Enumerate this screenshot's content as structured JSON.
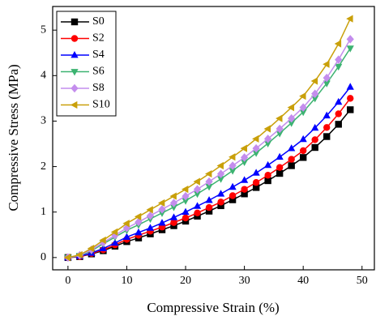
{
  "chart_data": {
    "type": "line",
    "x_label": "Compressive Strain (%)",
    "y_label": "Compressive Stress (MPa)",
    "x": [
      0,
      2,
      4,
      6,
      8,
      10,
      12,
      14,
      16,
      18,
      20,
      22,
      24,
      26,
      28,
      30,
      32,
      34,
      36,
      38,
      40,
      42,
      44,
      46,
      48
    ],
    "series": [
      {
        "name": "S0",
        "color": "#000000",
        "marker": "square",
        "values": [
          0,
          0.02,
          0.08,
          0.15,
          0.25,
          0.35,
          0.43,
          0.52,
          0.61,
          0.7,
          0.8,
          0.91,
          1.02,
          1.14,
          1.27,
          1.4,
          1.54,
          1.69,
          1.85,
          2.02,
          2.2,
          2.42,
          2.66,
          2.93,
          3.25
        ]
      },
      {
        "name": "S2",
        "color": "#ff0000",
        "marker": "circle",
        "values": [
          0,
          0.02,
          0.09,
          0.17,
          0.28,
          0.4,
          0.49,
          0.58,
          0.67,
          0.77,
          0.87,
          0.98,
          1.1,
          1.22,
          1.36,
          1.5,
          1.65,
          1.81,
          1.98,
          2.16,
          2.35,
          2.59,
          2.86,
          3.16,
          3.5
        ]
      },
      {
        "name": "S4",
        "color": "#0000ff",
        "marker": "triangle-up",
        "values": [
          0,
          0.03,
          0.1,
          0.2,
          0.32,
          0.45,
          0.55,
          0.65,
          0.76,
          0.88,
          1.0,
          1.13,
          1.26,
          1.4,
          1.55,
          1.7,
          1.86,
          2.03,
          2.21,
          2.4,
          2.6,
          2.85,
          3.12,
          3.42,
          3.75
        ]
      },
      {
        "name": "S6",
        "color": "#3cb371",
        "marker": "triangle-down",
        "values": [
          0,
          0.04,
          0.15,
          0.3,
          0.45,
          0.6,
          0.72,
          0.85,
          0.98,
          1.11,
          1.25,
          1.4,
          1.56,
          1.73,
          1.91,
          2.1,
          2.3,
          2.51,
          2.73,
          2.96,
          3.2,
          3.5,
          3.83,
          4.2,
          4.6
        ]
      },
      {
        "name": "S8",
        "color": "#c48ded",
        "marker": "diamond",
        "values": [
          0,
          0.05,
          0.17,
          0.33,
          0.49,
          0.65,
          0.78,
          0.92,
          1.06,
          1.2,
          1.35,
          1.5,
          1.67,
          1.84,
          2.02,
          2.2,
          2.4,
          2.61,
          2.83,
          3.06,
          3.3,
          3.6,
          3.95,
          4.35,
          4.8
        ]
      },
      {
        "name": "S10",
        "color": "#c9a00a",
        "marker": "triangle-left",
        "values": [
          0,
          0.06,
          0.2,
          0.38,
          0.56,
          0.75,
          0.9,
          1.05,
          1.2,
          1.35,
          1.5,
          1.67,
          1.84,
          2.02,
          2.21,
          2.4,
          2.61,
          2.83,
          3.06,
          3.3,
          3.55,
          3.88,
          4.25,
          4.7,
          5.25
        ]
      }
    ],
    "xlim": [
      -2.6,
      52.1
    ],
    "xticks": [
      0,
      10,
      20,
      30,
      40,
      50
    ],
    "ylim": [
      -0.27,
      5.52
    ],
    "yticks": [
      0,
      1,
      2,
      3,
      4,
      5
    ],
    "grid": false,
    "legend": "upper left"
  }
}
